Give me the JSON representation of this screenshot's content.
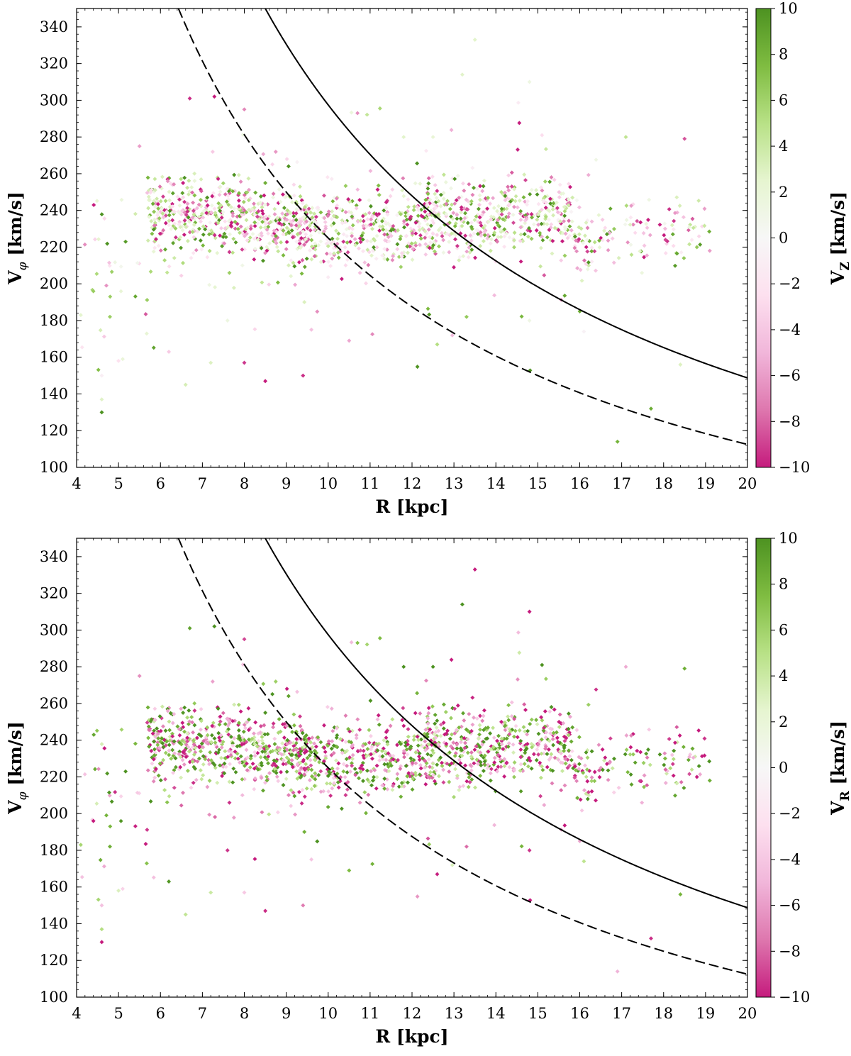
{
  "chart_data": [
    {
      "type": "scatter",
      "panel": "top",
      "xlabel": "R [kpc]",
      "ylabel": "V_phi [km/s]",
      "ylabel_main": "V",
      "ylabel_sub": "φ",
      "ylabel_unit": " [km/s]",
      "xlim": [
        4,
        20
      ],
      "ylim": [
        100,
        350
      ],
      "xticks": [
        4,
        5,
        6,
        7,
        8,
        9,
        10,
        11,
        12,
        13,
        14,
        15,
        16,
        17,
        18,
        19,
        20
      ],
      "yticks": [
        100,
        120,
        140,
        160,
        180,
        200,
        220,
        240,
        260,
        280,
        300,
        320,
        340
      ],
      "colorbar": {
        "label": "V_Z [km/s]",
        "label_main": "V",
        "label_sub": "Z",
        "label_unit": " [km/s]",
        "range": [
          -10,
          10
        ],
        "ticks": [
          -10,
          -8,
          -6,
          -4,
          -2,
          0,
          2,
          4,
          6,
          8,
          10
        ],
        "cmap": [
          "#c51b7d",
          "#de77ae",
          "#f1b6da",
          "#fde0ef",
          "#f7f7f7",
          "#e6f5d0",
          "#b8e186",
          "#7fbc41",
          "#4d9221"
        ]
      },
      "series": [
        {
          "name": "stars (scattered, colored by V_Z)",
          "description": "~1500 stars; main clump V_phi 200-260 km/s across R 5.5-19 kpc; outliers down to ~115 and up to ~333 km/s"
        },
        {
          "name": "solid curve",
          "style": "solid",
          "x": [
            8.43,
            9,
            10,
            11,
            12,
            13,
            14,
            15,
            16,
            17,
            18,
            19,
            20
          ],
          "y": [
            350,
            328,
            295,
            268,
            246,
            227,
            211,
            197,
            185,
            174,
            164,
            155,
            148
          ]
        },
        {
          "name": "dashed curve",
          "style": "dashed",
          "x": [
            6.45,
            7,
            8,
            9,
            10,
            11,
            12,
            13,
            14,
            15,
            16,
            17,
            18,
            19,
            20
          ],
          "y": [
            350,
            322,
            282,
            250,
            225,
            205,
            188,
            173,
            161,
            150,
            141,
            133,
            125,
            119,
            113
          ]
        }
      ],
      "notable_points": [
        {
          "x": 13.5,
          "y": 333
        },
        {
          "x": 13.2,
          "y": 314
        },
        {
          "x": 14.8,
          "y": 310
        },
        {
          "x": 4.6,
          "y": 130
        },
        {
          "x": 16.9,
          "y": 114
        },
        {
          "x": 17.7,
          "y": 132
        },
        {
          "x": 18.4,
          "y": 156
        },
        {
          "x": 16.0,
          "y": 185
        },
        {
          "x": 19.1,
          "y": 218
        }
      ]
    },
    {
      "type": "scatter",
      "panel": "bottom",
      "xlabel": "R [kpc]",
      "ylabel": "V_phi [km/s]",
      "ylabel_main": "V",
      "ylabel_sub": "φ",
      "ylabel_unit": " [km/s]",
      "xlim": [
        4,
        20
      ],
      "ylim": [
        100,
        350
      ],
      "xticks": [
        4,
        5,
        6,
        7,
        8,
        9,
        10,
        11,
        12,
        13,
        14,
        15,
        16,
        17,
        18,
        19,
        20
      ],
      "yticks": [
        100,
        120,
        140,
        160,
        180,
        200,
        220,
        240,
        260,
        280,
        300,
        320,
        340
      ],
      "colorbar": {
        "label": "V_R [km/s]",
        "label_main": "V",
        "label_sub": "R",
        "label_unit": " [km/s]",
        "range": [
          -10,
          10
        ],
        "ticks": [
          -10,
          -8,
          -6,
          -4,
          -2,
          0,
          2,
          4,
          6,
          8,
          10
        ],
        "cmap": [
          "#c51b7d",
          "#de77ae",
          "#f1b6da",
          "#fde0ef",
          "#f7f7f7",
          "#e6f5d0",
          "#b8e186",
          "#7fbc41",
          "#4d9221"
        ]
      },
      "series": [
        {
          "name": "stars (scattered, colored by V_R)",
          "description": "same stars as top panel; colours mostly saturated magenta or green"
        },
        {
          "name": "solid curve",
          "style": "solid",
          "x": [
            8.43,
            9,
            10,
            11,
            12,
            13,
            14,
            15,
            16,
            17,
            18,
            19,
            20
          ],
          "y": [
            350,
            328,
            295,
            268,
            246,
            227,
            211,
            197,
            185,
            174,
            164,
            155,
            148
          ]
        },
        {
          "name": "dashed curve",
          "style": "dashed",
          "x": [
            6.45,
            7,
            8,
            9,
            10,
            11,
            12,
            13,
            14,
            15,
            16,
            17,
            18,
            19,
            20
          ],
          "y": [
            350,
            322,
            282,
            250,
            225,
            205,
            188,
            173,
            161,
            150,
            141,
            133,
            125,
            119,
            113
          ]
        }
      ],
      "notable_points": [
        {
          "x": 13.5,
          "y": 333
        },
        {
          "x": 13.2,
          "y": 314
        },
        {
          "x": 14.8,
          "y": 310
        },
        {
          "x": 4.6,
          "y": 130
        },
        {
          "x": 16.9,
          "y": 114
        },
        {
          "x": 17.7,
          "y": 132
        },
        {
          "x": 18.4,
          "y": 156
        },
        {
          "x": 16.0,
          "y": 185
        },
        {
          "x": 19.1,
          "y": 218
        }
      ]
    }
  ]
}
